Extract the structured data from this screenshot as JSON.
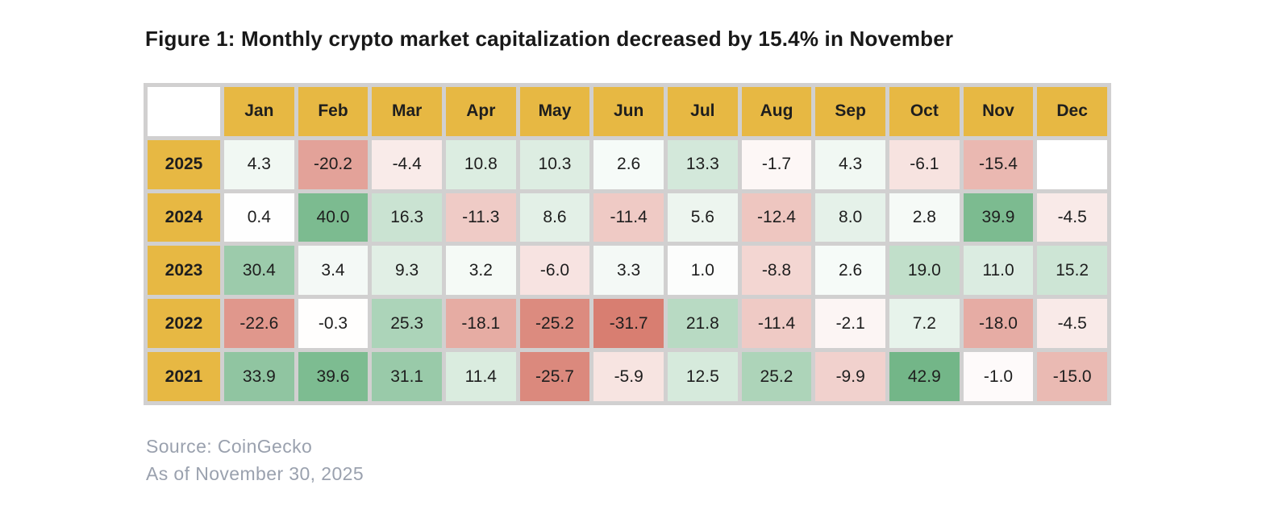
{
  "title": "Figure 1: Monthly crypto market capitalization decreased by 15.4% in November",
  "source_line": "Source: CoinGecko",
  "as_of_line": "As of November 30, 2025",
  "chart_data": {
    "type": "heatmap",
    "title": "Monthly crypto market capitalization % change",
    "unit": "%",
    "columns": [
      "Jan",
      "Feb",
      "Mar",
      "Apr",
      "May",
      "Jun",
      "Jul",
      "Aug",
      "Sep",
      "Oct",
      "Nov",
      "Dec"
    ],
    "rows": [
      {
        "year": "2025",
        "values": [
          4.3,
          -20.2,
          -4.4,
          10.8,
          10.3,
          2.6,
          13.3,
          -1.7,
          4.3,
          -6.1,
          -15.4,
          null
        ]
      },
      {
        "year": "2024",
        "values": [
          0.4,
          40.0,
          16.3,
          -11.3,
          8.6,
          -11.4,
          5.6,
          -12.4,
          8.0,
          2.8,
          39.9,
          -4.5
        ]
      },
      {
        "year": "2023",
        "values": [
          30.4,
          3.4,
          9.3,
          3.2,
          -6.0,
          3.3,
          1.0,
          -8.8,
          2.6,
          19.0,
          11.0,
          15.2
        ]
      },
      {
        "year": "2022",
        "values": [
          -22.6,
          -0.3,
          25.3,
          -18.1,
          -25.2,
          -31.7,
          21.8,
          -11.4,
          -2.1,
          7.2,
          -18.0,
          -4.5
        ]
      },
      {
        "year": "2021",
        "values": [
          33.9,
          39.6,
          31.1,
          11.4,
          -25.7,
          -5.9,
          12.5,
          25.2,
          -9.9,
          42.9,
          -1.0,
          -15.0
        ]
      }
    ],
    "colors": {
      "header_bg": "#e7b843",
      "positive_max_color": "#6fb485",
      "negative_max_color": "#d87e71",
      "neutral_color": "#ffffff",
      "grid_gap_color": "#d1d0d0",
      "cell_text_color": "#1e1e1e"
    },
    "scale": {
      "green_at": 44,
      "red_at": -28
    },
    "legend_position": "none",
    "grid": "gap-lines"
  }
}
